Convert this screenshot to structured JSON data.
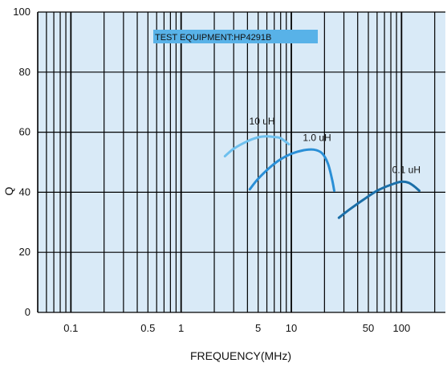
{
  "chart_data": {
    "type": "line",
    "xscale": "log",
    "xlim": [
      0.05,
      250
    ],
    "ylim": [
      0,
      100
    ],
    "xlabel": "FREQUENCY(MHz)",
    "ylabel": "Q",
    "x_ticks": [
      {
        "value": 0.1,
        "label": "0.1"
      },
      {
        "value": 0.5,
        "label": "0.5"
      },
      {
        "value": 1,
        "label": "1"
      },
      {
        "value": 5,
        "label": "5"
      },
      {
        "value": 10,
        "label": "10"
      },
      {
        "value": 50,
        "label": "50"
      },
      {
        "value": 100,
        "label": "100"
      }
    ],
    "y_ticks": [
      0,
      20,
      40,
      60,
      80,
      100
    ],
    "grid": true,
    "annotation": "TEST EQUIPMENT:HP4291B",
    "series": [
      {
        "name": "10 uH",
        "color": "#6ec0ee",
        "points": [
          [
            2.5,
            52
          ],
          [
            3,
            54.5
          ],
          [
            4,
            57
          ],
          [
            5,
            58.3
          ],
          [
            6,
            58.6
          ],
          [
            7,
            58.4
          ],
          [
            8,
            58
          ],
          [
            9.5,
            56
          ]
        ]
      },
      {
        "name": "1.0 uH",
        "color": "#2a8fd6",
        "points": [
          [
            4.2,
            41
          ],
          [
            5,
            44.5
          ],
          [
            6.5,
            48.5
          ],
          [
            8,
            51
          ],
          [
            10,
            52.8
          ],
          [
            13,
            54
          ],
          [
            16,
            54.2
          ],
          [
            19,
            53
          ],
          [
            21.5,
            49.5
          ],
          [
            23.5,
            44
          ],
          [
            24.5,
            40.5
          ]
        ]
      },
      {
        "name": "0.1 uH",
        "color": "#1b6fa8",
        "points": [
          [
            27,
            31.5
          ],
          [
            33,
            34
          ],
          [
            45,
            37.5
          ],
          [
            60,
            40.5
          ],
          [
            80,
            42.5
          ],
          [
            100,
            43.5
          ],
          [
            115,
            43.2
          ],
          [
            130,
            42
          ],
          [
            145,
            40.5
          ]
        ]
      }
    ]
  },
  "colors": {
    "plot_background": "#d9eaf7",
    "grid": "#000000",
    "annotation_background": "#58b2e8"
  }
}
